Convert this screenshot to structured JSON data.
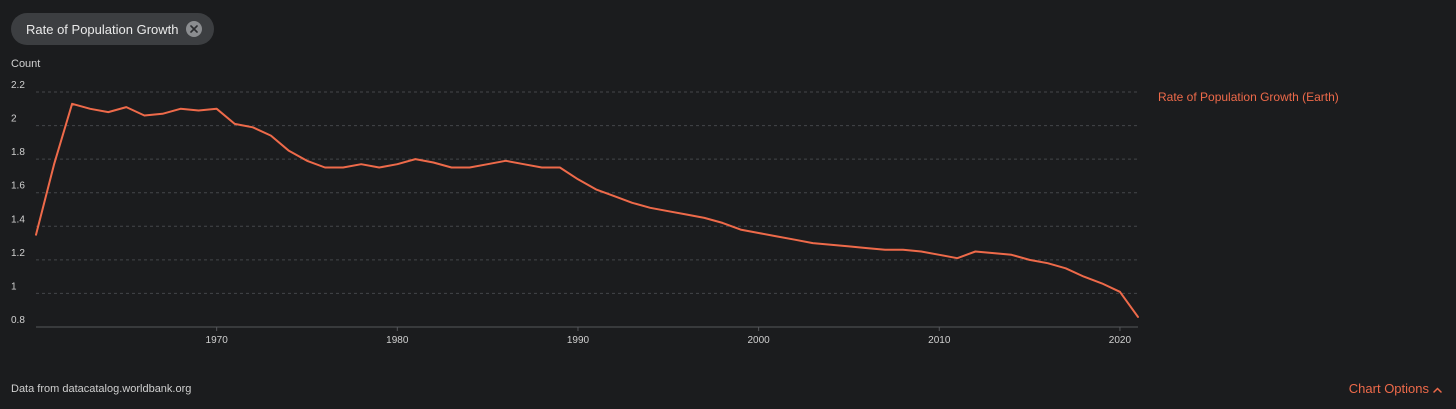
{
  "filter_pill": {
    "label": "Rate of Population Growth"
  },
  "legend": {
    "label": "Rate of Population Growth (Earth)"
  },
  "footer": {
    "source": "Data from datacatalog.worldbank.org",
    "chart_options": "Chart Options"
  },
  "colors": {
    "series": "#ee6a4a",
    "background": "#1b1c1e",
    "grid": "#44464a",
    "pill_background": "#3c3e41"
  },
  "icons": {
    "pill_close": "close-circle-icon",
    "chart_options": "chevron-up-icon"
  },
  "chart_data": {
    "type": "line",
    "title": "",
    "xlabel": "",
    "ylabel": "Count",
    "xlim": [
      1960,
      2021
    ],
    "ylim": [
      0.8,
      2.2
    ],
    "y_ticks": [
      "0.8",
      "1",
      "1.2",
      "1.4",
      "1.6",
      "1.8",
      "2",
      "2.2"
    ],
    "x_ticks": [
      "1970",
      "1980",
      "1990",
      "2000",
      "2010",
      "2020"
    ],
    "grid": true,
    "legend_position": "right",
    "series": [
      {
        "name": "Rate of Population Growth (Earth)",
        "color": "#ee6a4a",
        "x": [
          1960,
          1961,
          1962,
          1963,
          1964,
          1965,
          1966,
          1967,
          1968,
          1969,
          1970,
          1971,
          1972,
          1973,
          1974,
          1975,
          1976,
          1977,
          1978,
          1979,
          1980,
          1981,
          1982,
          1983,
          1984,
          1985,
          1986,
          1987,
          1988,
          1989,
          1990,
          1991,
          1992,
          1993,
          1994,
          1995,
          1996,
          1997,
          1998,
          1999,
          2000,
          2001,
          2002,
          2003,
          2004,
          2005,
          2006,
          2007,
          2008,
          2009,
          2010,
          2011,
          2012,
          2013,
          2014,
          2015,
          2016,
          2017,
          2018,
          2019,
          2020,
          2021
        ],
        "y": [
          1.35,
          1.77,
          2.13,
          2.1,
          2.08,
          2.11,
          2.06,
          2.07,
          2.1,
          2.09,
          2.1,
          2.01,
          1.99,
          1.94,
          1.85,
          1.79,
          1.75,
          1.75,
          1.77,
          1.75,
          1.77,
          1.8,
          1.78,
          1.75,
          1.75,
          1.77,
          1.79,
          1.77,
          1.75,
          1.75,
          1.68,
          1.62,
          1.58,
          1.54,
          1.51,
          1.49,
          1.47,
          1.45,
          1.42,
          1.38,
          1.36,
          1.34,
          1.32,
          1.3,
          1.29,
          1.28,
          1.27,
          1.26,
          1.26,
          1.25,
          1.23,
          1.21,
          1.25,
          1.24,
          1.23,
          1.2,
          1.18,
          1.15,
          1.1,
          1.06,
          1.01,
          0.86
        ]
      }
    ]
  }
}
